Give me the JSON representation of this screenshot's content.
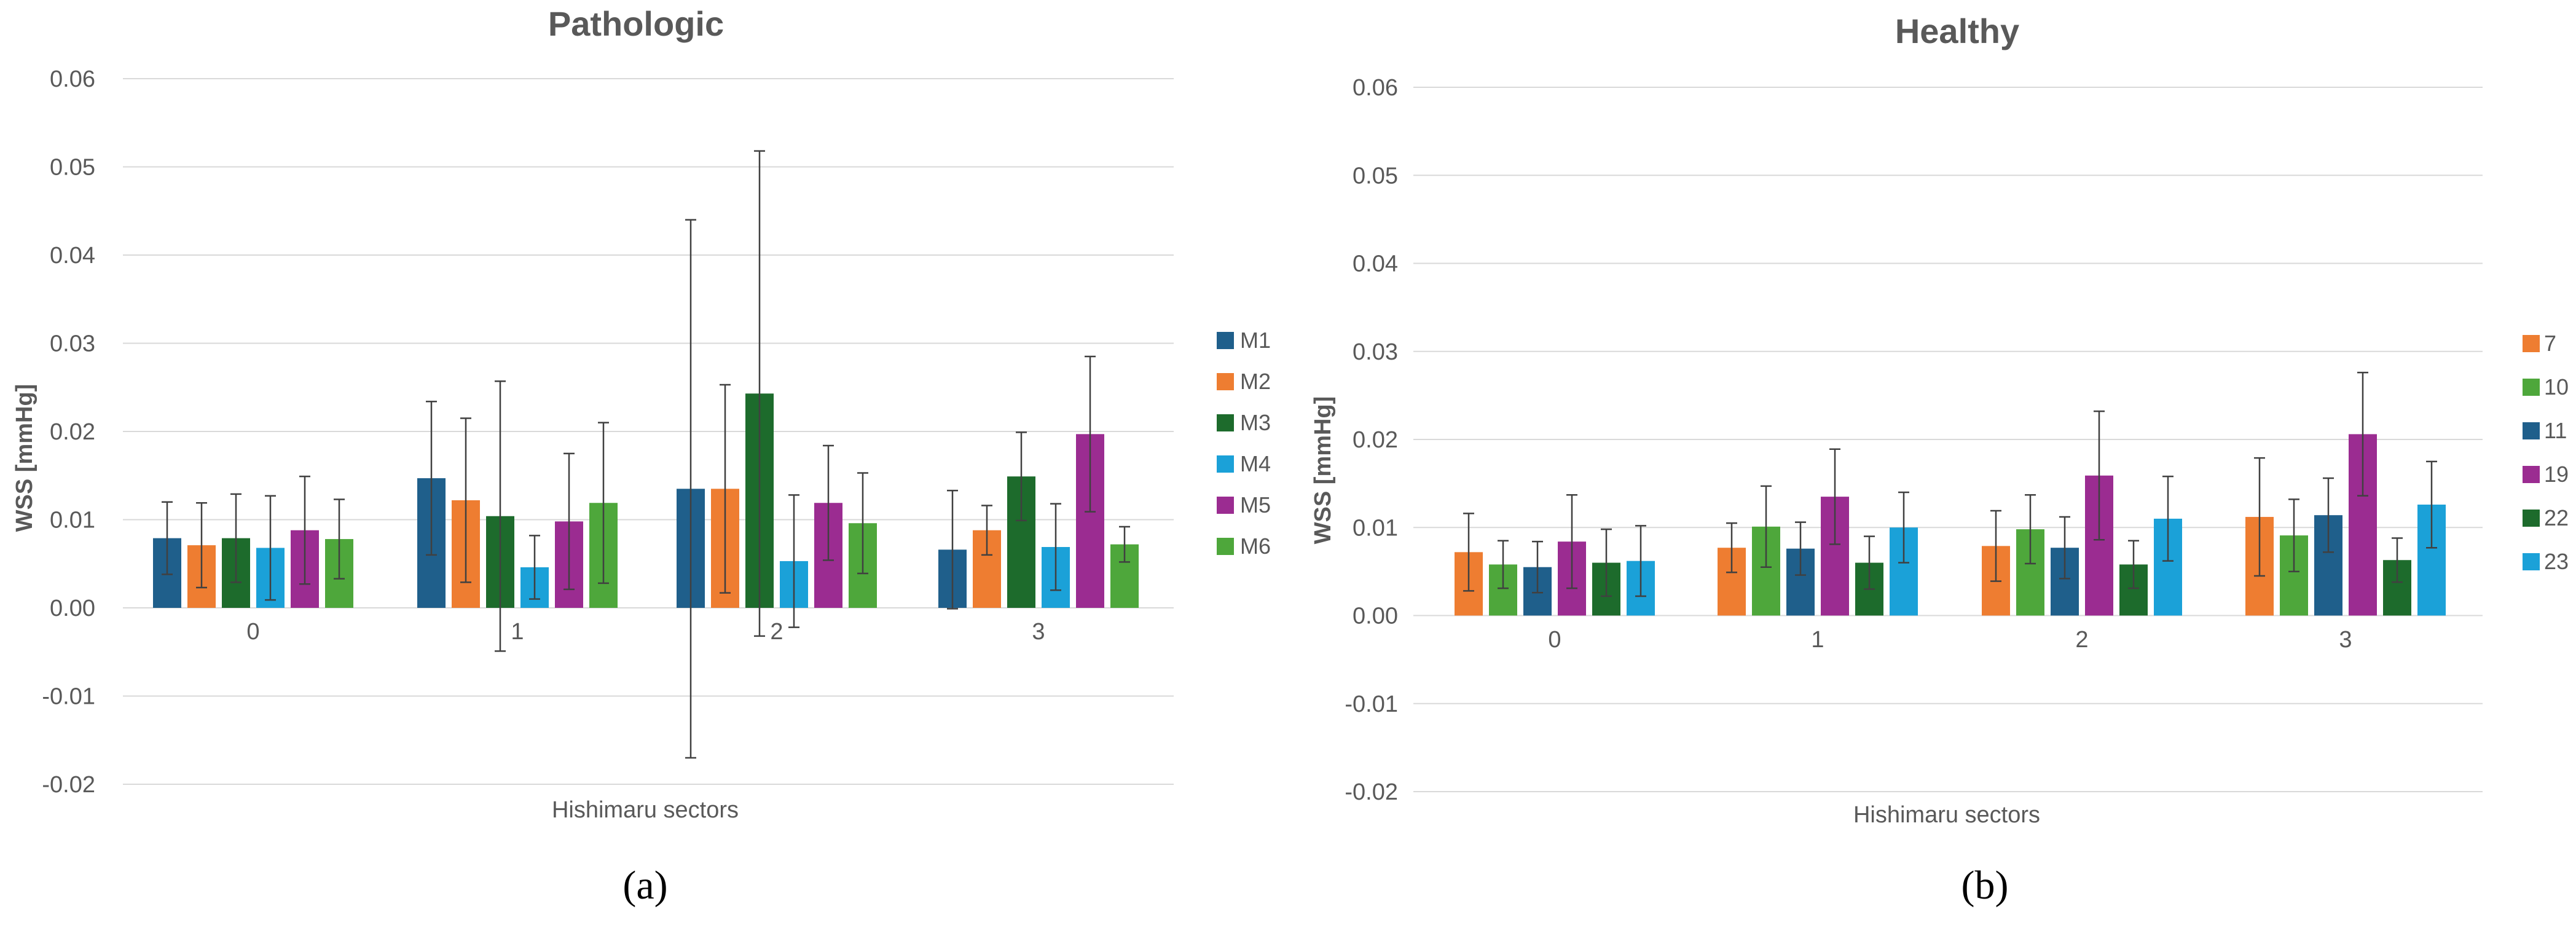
{
  "chart_data": [
    {
      "type": "bar",
      "title": "Pathologic",
      "ylabel": "WSS [mmHg]",
      "xlabel": "Hishimaru sectors",
      "caption": "(a)",
      "ylim": [
        -0.02,
        0.06
      ],
      "yticks": [
        "0.06",
        "0.05",
        "0.04",
        "0.03",
        "0.02",
        "0.01",
        "0.00",
        "-0.01",
        "-0.02"
      ],
      "ytick_values": [
        0.06,
        0.05,
        0.04,
        0.03,
        0.02,
        0.01,
        0.0,
        -0.01,
        -0.02
      ],
      "categories": [
        "0",
        "1",
        "2",
        "3"
      ],
      "grid": true,
      "legend_position": "right",
      "series": [
        {
          "name": "M1",
          "color": "#1f5f8b",
          "values": [
            0.0079,
            0.0147,
            0.0135,
            0.0066
          ],
          "errors": [
            0.0041,
            0.0087,
            0.0305,
            0.0067
          ]
        },
        {
          "name": "M2",
          "color": "#ee7d31",
          "values": [
            0.0071,
            0.0122,
            0.0135,
            0.0088
          ],
          "errors": [
            0.0048,
            0.0093,
            0.0118,
            0.0028
          ]
        },
        {
          "name": "M3",
          "color": "#1d6b2c",
          "values": [
            0.0079,
            0.0104,
            0.0243,
            0.0149
          ],
          "errors": [
            0.005,
            0.0153,
            0.0275,
            0.005
          ]
        },
        {
          "name": "M4",
          "color": "#1ba1d8",
          "values": [
            0.0068,
            0.0046,
            0.0053,
            0.0069
          ],
          "errors": [
            0.0059,
            0.0036,
            0.0075,
            0.0049
          ]
        },
        {
          "name": "M5",
          "color": "#9b2c91",
          "values": [
            0.0088,
            0.0098,
            0.0119,
            0.0197
          ],
          "errors": [
            0.0061,
            0.0077,
            0.0065,
            0.0088
          ]
        },
        {
          "name": "M6",
          "color": "#4ea73b",
          "values": [
            0.0078,
            0.0119,
            0.0096,
            0.0072
          ],
          "errors": [
            0.0045,
            0.0091,
            0.0057,
            0.002
          ]
        }
      ]
    },
    {
      "type": "bar",
      "title": "Healthy",
      "ylabel": "WSS [mmHg]",
      "xlabel": "Hishimaru sectors",
      "caption": "(b)",
      "ylim": [
        -0.02,
        0.06
      ],
      "yticks": [
        "0.06",
        "0.05",
        "0.04",
        "0.03",
        "0.02",
        "0.01",
        "0.00",
        "-0.01",
        "-0.02"
      ],
      "ytick_values": [
        0.06,
        0.05,
        0.04,
        0.03,
        0.02,
        0.01,
        0.0,
        -0.01,
        -0.02
      ],
      "categories": [
        "0",
        "1",
        "2",
        "3"
      ],
      "grid": true,
      "legend_position": "right",
      "series": [
        {
          "name": "7",
          "color": "#ee7d31",
          "values": [
            0.0072,
            0.0077,
            0.0079,
            0.0112
          ],
          "errors": [
            0.0044,
            0.0028,
            0.004,
            0.0067
          ]
        },
        {
          "name": "10",
          "color": "#4ea73b",
          "values": [
            0.0058,
            0.0101,
            0.0098,
            0.0091
          ],
          "errors": [
            0.0027,
            0.0046,
            0.0039,
            0.0041
          ]
        },
        {
          "name": "11",
          "color": "#1f5f8b",
          "values": [
            0.0055,
            0.0076,
            0.0077,
            0.0114
          ],
          "errors": [
            0.0029,
            0.003,
            0.0035,
            0.0042
          ]
        },
        {
          "name": "19",
          "color": "#9b2c91",
          "values": [
            0.0084,
            0.0135,
            0.0159,
            0.0206
          ],
          "errors": [
            0.0053,
            0.0054,
            0.0073,
            0.007
          ]
        },
        {
          "name": "22",
          "color": "#1d6b2c",
          "values": [
            0.006,
            0.006,
            0.0058,
            0.0063
          ],
          "errors": [
            0.0038,
            0.003,
            0.0027,
            0.0025
          ]
        },
        {
          "name": "23",
          "color": "#1ba1d8",
          "values": [
            0.0062,
            0.01,
            0.011,
            0.0126
          ],
          "errors": [
            0.004,
            0.004,
            0.0048,
            0.0049
          ]
        }
      ]
    }
  ]
}
